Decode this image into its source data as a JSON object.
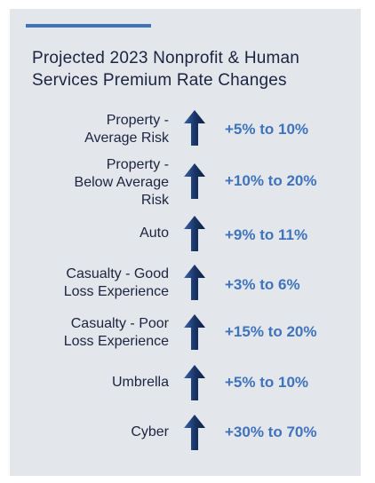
{
  "title_line1": "Projected 2023 Nonprofit & Human",
  "title_line2": "Services Premium Rate Changes",
  "colors": {
    "accent": "#3f74bd",
    "text": "#1b2440",
    "panel": "#e3e6ea",
    "arrow": "#1d3a6e"
  },
  "rows": [
    {
      "label_lines": [
        "Property -",
        "Average Risk"
      ],
      "value": "+5% to 10%",
      "icon": "up-arrow-icon"
    },
    {
      "label_lines": [
        "Property -",
        "Below Average",
        "Risk"
      ],
      "value": "+10% to 20%",
      "icon": "up-arrow-icon"
    },
    {
      "label_lines": [
        "Auto"
      ],
      "value": "+9% to 11%",
      "icon": "up-arrow-icon"
    },
    {
      "label_lines": [
        "Casualty - Good",
        "Loss Experience"
      ],
      "value": "+3% to 6%",
      "icon": "up-arrow-icon"
    },
    {
      "label_lines": [
        "Casualty - Poor",
        "Loss Experience"
      ],
      "value": "+15% to 20%",
      "icon": "up-arrow-icon"
    },
    {
      "label_lines": [
        "Umbrella"
      ],
      "value": "+5% to 10%",
      "icon": "up-arrow-icon"
    },
    {
      "label_lines": [
        "Cyber"
      ],
      "value": "+30% to 70%",
      "icon": "up-arrow-icon"
    }
  ]
}
